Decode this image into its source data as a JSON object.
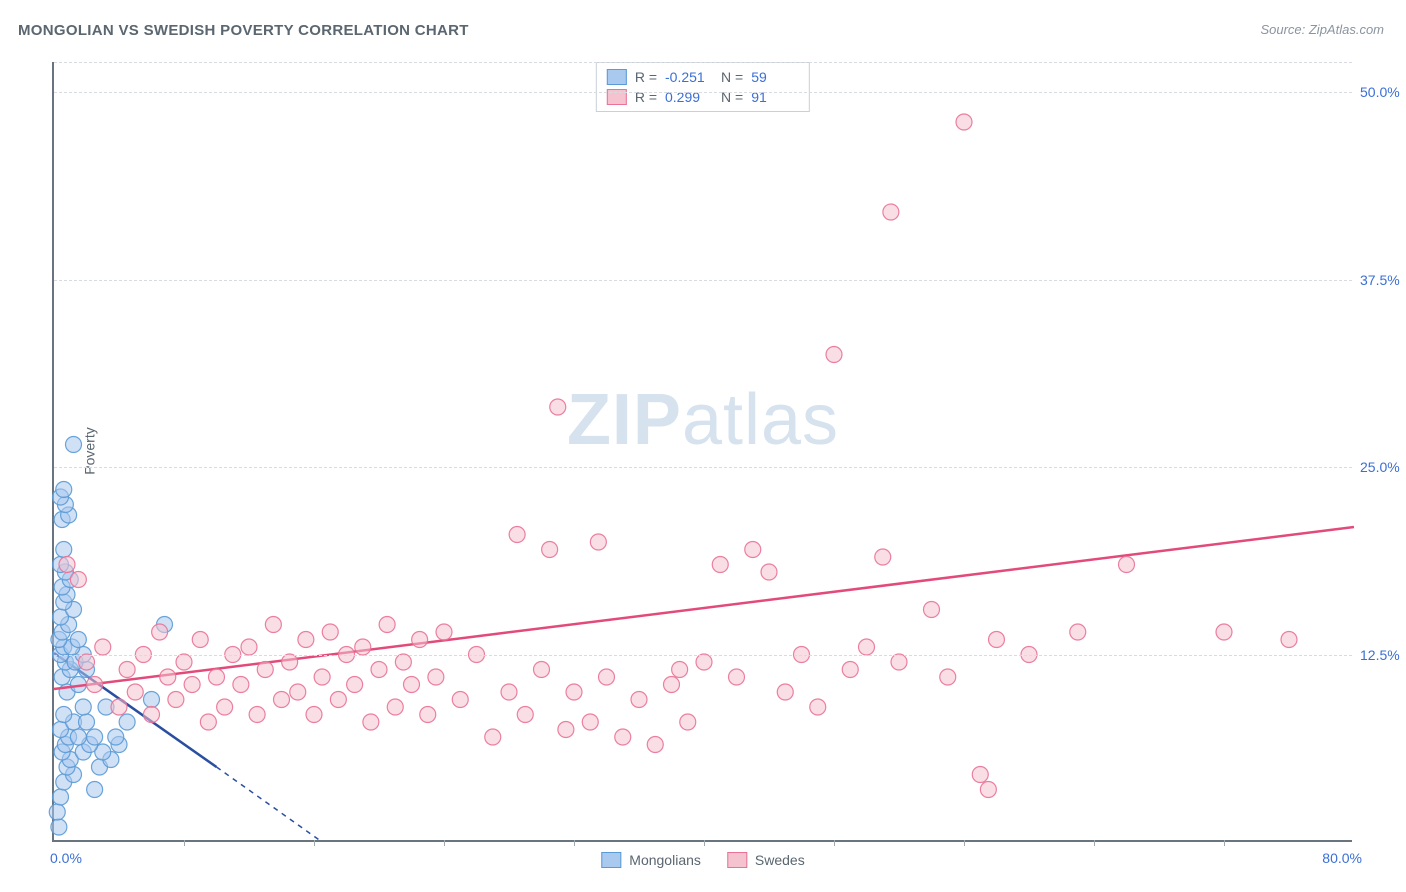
{
  "title": "MONGOLIAN VS SWEDISH POVERTY CORRELATION CHART",
  "source": "Source: ZipAtlas.com",
  "ylabel": "Poverty",
  "watermark_zip": "ZIP",
  "watermark_atlas": "atlas",
  "chart": {
    "type": "scatter",
    "xlim": [
      0,
      80
    ],
    "ylim": [
      0,
      52
    ],
    "y_ticks": [
      12.5,
      25.0,
      37.5,
      50.0
    ],
    "y_tick_labels": [
      "12.5%",
      "25.0%",
      "37.5%",
      "50.0%"
    ],
    "x_origin_label": "0.0%",
    "x_max_label": "80.0%",
    "x_minor_step": 8,
    "background_color": "#ffffff",
    "grid_color": "#d8dce0",
    "axis_color": "#6a747e",
    "tick_label_color": "#3b6fd6",
    "marker_radius": 8,
    "marker_opacity": 0.55,
    "marker_stroke_opacity": 0.9,
    "series": [
      {
        "name": "Mongolians",
        "fill": "#a9c9ef",
        "stroke": "#5a9ad6",
        "trend": {
          "x1": 0,
          "y1": 12.6,
          "x2": 10,
          "y2": 5.0,
          "color": "#2a4ea0",
          "width": 2.5
        },
        "trend_ext": {
          "x1": 10,
          "y1": 5.0,
          "x2": 16.5,
          "y2": 0,
          "color": "#2a4ea0",
          "dash": true
        },
        "stats": {
          "R": "-0.251",
          "N": "59"
        },
        "points": [
          [
            0.3,
            1.0
          ],
          [
            0.2,
            2.0
          ],
          [
            0.4,
            3.0
          ],
          [
            2.5,
            3.5
          ],
          [
            0.6,
            4.0
          ],
          [
            1.2,
            4.5
          ],
          [
            0.8,
            5.0
          ],
          [
            2.8,
            5.0
          ],
          [
            1.0,
            5.5
          ],
          [
            3.5,
            5.5
          ],
          [
            0.5,
            6.0
          ],
          [
            1.8,
            6.0
          ],
          [
            3.0,
            6.0
          ],
          [
            0.7,
            6.5
          ],
          [
            2.2,
            6.5
          ],
          [
            4.0,
            6.5
          ],
          [
            0.9,
            7.0
          ],
          [
            1.5,
            7.0
          ],
          [
            2.5,
            7.0
          ],
          [
            3.8,
            7.0
          ],
          [
            0.4,
            7.5
          ],
          [
            1.2,
            8.0
          ],
          [
            2.0,
            8.0
          ],
          [
            4.5,
            8.0
          ],
          [
            0.6,
            8.5
          ],
          [
            1.8,
            9.0
          ],
          [
            3.2,
            9.0
          ],
          [
            6.0,
            9.5
          ],
          [
            0.8,
            10.0
          ],
          [
            1.5,
            10.5
          ],
          [
            0.5,
            11.0
          ],
          [
            1.0,
            11.5
          ],
          [
            2.0,
            11.5
          ],
          [
            0.7,
            12.0
          ],
          [
            1.3,
            12.0
          ],
          [
            0.4,
            12.5
          ],
          [
            1.8,
            12.5
          ],
          [
            0.6,
            13.0
          ],
          [
            1.1,
            13.0
          ],
          [
            0.3,
            13.5
          ],
          [
            1.5,
            13.5
          ],
          [
            0.5,
            14.0
          ],
          [
            0.9,
            14.5
          ],
          [
            6.8,
            14.5
          ],
          [
            0.4,
            15.0
          ],
          [
            1.2,
            15.5
          ],
          [
            0.6,
            16.0
          ],
          [
            0.8,
            16.5
          ],
          [
            0.5,
            17.0
          ],
          [
            1.0,
            17.5
          ],
          [
            0.7,
            18.0
          ],
          [
            0.4,
            18.5
          ],
          [
            0.6,
            19.5
          ],
          [
            0.5,
            21.5
          ],
          [
            0.9,
            21.8
          ],
          [
            0.7,
            22.5
          ],
          [
            0.4,
            23.0
          ],
          [
            0.6,
            23.5
          ],
          [
            1.2,
            26.5
          ]
        ]
      },
      {
        "name": "Swedes",
        "fill": "#f4c3cf",
        "stroke": "#e97296",
        "trend": {
          "x1": 0,
          "y1": 10.2,
          "x2": 80,
          "y2": 21.0,
          "color": "#e24a7a",
          "width": 2.5
        },
        "stats": {
          "R": "0.299",
          "N": "91"
        },
        "points": [
          [
            0.8,
            18.5
          ],
          [
            1.5,
            17.5
          ],
          [
            2.0,
            12.0
          ],
          [
            2.5,
            10.5
          ],
          [
            3.0,
            13.0
          ],
          [
            4.0,
            9.0
          ],
          [
            4.5,
            11.5
          ],
          [
            5.0,
            10.0
          ],
          [
            5.5,
            12.5
          ],
          [
            6.0,
            8.5
          ],
          [
            6.5,
            14.0
          ],
          [
            7.0,
            11.0
          ],
          [
            7.5,
            9.5
          ],
          [
            8.0,
            12.0
          ],
          [
            8.5,
            10.5
          ],
          [
            9.0,
            13.5
          ],
          [
            9.5,
            8.0
          ],
          [
            10.0,
            11.0
          ],
          [
            10.5,
            9.0
          ],
          [
            11.0,
            12.5
          ],
          [
            11.5,
            10.5
          ],
          [
            12.0,
            13.0
          ],
          [
            12.5,
            8.5
          ],
          [
            13.0,
            11.5
          ],
          [
            13.5,
            14.5
          ],
          [
            14.0,
            9.5
          ],
          [
            14.5,
            12.0
          ],
          [
            15.0,
            10.0
          ],
          [
            15.5,
            13.5
          ],
          [
            16.0,
            8.5
          ],
          [
            16.5,
            11.0
          ],
          [
            17.0,
            14.0
          ],
          [
            17.5,
            9.5
          ],
          [
            18.0,
            12.5
          ],
          [
            18.5,
            10.5
          ],
          [
            19.0,
            13.0
          ],
          [
            19.5,
            8.0
          ],
          [
            20.0,
            11.5
          ],
          [
            20.5,
            14.5
          ],
          [
            21.0,
            9.0
          ],
          [
            21.5,
            12.0
          ],
          [
            22.0,
            10.5
          ],
          [
            22.5,
            13.5
          ],
          [
            23.0,
            8.5
          ],
          [
            23.5,
            11.0
          ],
          [
            24.0,
            14.0
          ],
          [
            25.0,
            9.5
          ],
          [
            26.0,
            12.5
          ],
          [
            27.0,
            7.0
          ],
          [
            28.0,
            10.0
          ],
          [
            28.5,
            20.5
          ],
          [
            29.0,
            8.5
          ],
          [
            30.0,
            11.5
          ],
          [
            30.5,
            19.5
          ],
          [
            31.0,
            29.0
          ],
          [
            31.5,
            7.5
          ],
          [
            32.0,
            10.0
          ],
          [
            33.0,
            8.0
          ],
          [
            33.5,
            20.0
          ],
          [
            34.0,
            11.0
          ],
          [
            35.0,
            7.0
          ],
          [
            36.0,
            9.5
          ],
          [
            37.0,
            6.5
          ],
          [
            38.0,
            10.5
          ],
          [
            38.5,
            11.5
          ],
          [
            39.0,
            8.0
          ],
          [
            40.0,
            12.0
          ],
          [
            41.0,
            18.5
          ],
          [
            42.0,
            11.0
          ],
          [
            43.0,
            19.5
          ],
          [
            44.0,
            18.0
          ],
          [
            45.0,
            10.0
          ],
          [
            46.0,
            12.5
          ],
          [
            47.0,
            9.0
          ],
          [
            48.0,
            32.5
          ],
          [
            49.0,
            11.5
          ],
          [
            50.0,
            13.0
          ],
          [
            51.0,
            19.0
          ],
          [
            51.5,
            42.0
          ],
          [
            52.0,
            12.0
          ],
          [
            54.0,
            15.5
          ],
          [
            55.0,
            11.0
          ],
          [
            56.0,
            48.0
          ],
          [
            57.0,
            4.5
          ],
          [
            57.5,
            3.5
          ],
          [
            58.0,
            13.5
          ],
          [
            60.0,
            12.5
          ],
          [
            63.0,
            14.0
          ],
          [
            66.0,
            18.5
          ],
          [
            72.0,
            14.0
          ],
          [
            76.0,
            13.5
          ]
        ]
      }
    ]
  },
  "legend_bottom": {
    "items": [
      {
        "label": "Mongolians",
        "fill": "#a9c9ef",
        "stroke": "#5a9ad6"
      },
      {
        "label": "Swedes",
        "fill": "#f4c3cf",
        "stroke": "#e97296"
      }
    ]
  },
  "stats_labels": {
    "R": "R =",
    "N": "N ="
  }
}
